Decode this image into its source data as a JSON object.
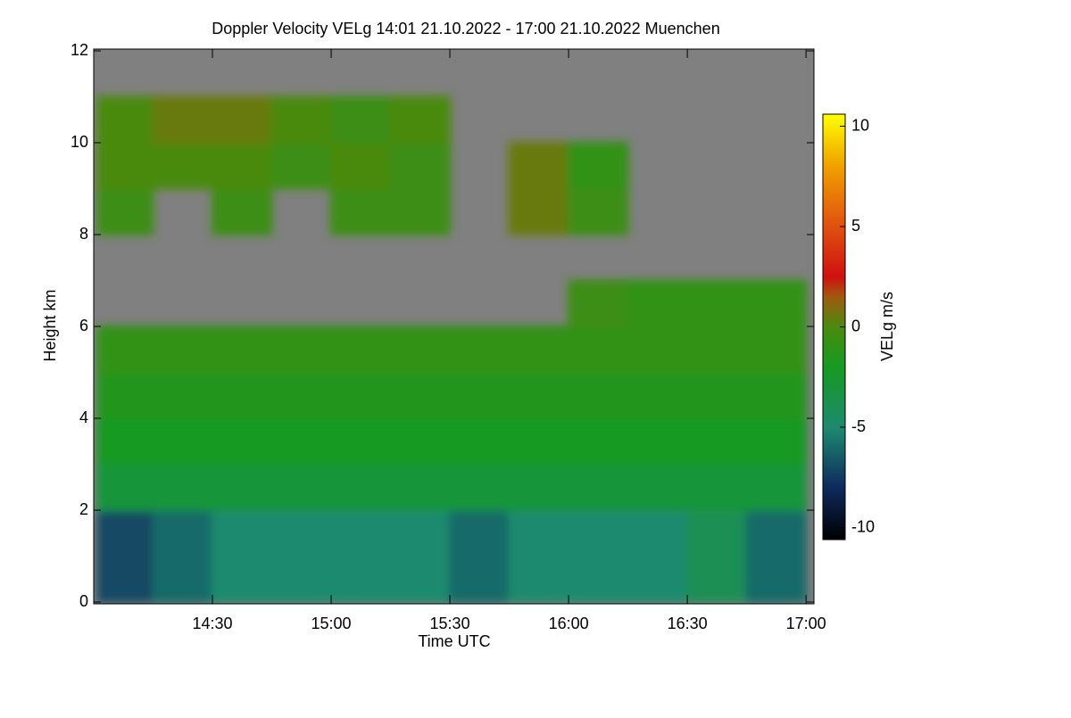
{
  "chart_data": {
    "type": "heatmap",
    "title": "Doppler Velocity VELg   14:01 21.10.2022 - 17:00 21.10.2022 Muenchen",
    "x_label": "Time UTC",
    "y_label": "Height km",
    "colorbar_label": "VELg m/s",
    "x_bins": [
      "14:01",
      "14:15",
      "14:30",
      "14:45",
      "15:00",
      "15:15",
      "15:30",
      "15:45",
      "16:00",
      "16:15",
      "16:30",
      "16:45",
      "17:00"
    ],
    "y_bins": [
      0,
      1,
      2,
      3,
      4,
      5,
      6,
      7,
      8,
      9,
      10,
      11,
      12
    ],
    "z": [
      [
        -7,
        -6,
        -5,
        -5,
        -5,
        -5,
        -6,
        -5,
        -5,
        -5,
        -4,
        -6
      ],
      [
        -7,
        -6,
        -5,
        -5,
        -5,
        -5,
        -6,
        -5,
        -5,
        -5,
        -4,
        -6
      ],
      [
        -3,
        -3,
        -3,
        -3,
        -3,
        -3,
        -3,
        -3,
        -3,
        -3,
        -3,
        -3
      ],
      [
        -2,
        -2,
        -2,
        -2,
        -2,
        -2,
        -2,
        -2,
        -2,
        -2,
        -2,
        -2
      ],
      [
        -1.5,
        -1.5,
        -1.5,
        -1.5,
        -1.5,
        -1.5,
        -1.5,
        -1.5,
        -1.5,
        -1.5,
        -1.5,
        -1.5
      ],
      [
        -1,
        -1,
        -1,
        -1,
        -1,
        -1,
        -1,
        -1,
        -1,
        -1,
        -1,
        -1
      ],
      [
        null,
        null,
        null,
        null,
        null,
        null,
        null,
        null,
        -0.5,
        -1,
        -1,
        -1
      ],
      [
        null,
        null,
        null,
        null,
        null,
        null,
        null,
        null,
        null,
        null,
        null,
        null
      ],
      [
        -0.5,
        null,
        -0.5,
        null,
        -0.5,
        -0.5,
        null,
        0.5,
        -0.5,
        null,
        null,
        null
      ],
      [
        0,
        0,
        0,
        -0.5,
        0,
        -0.5,
        null,
        0.5,
        -1,
        null,
        null,
        null
      ],
      [
        0,
        0.5,
        0.5,
        0,
        -0.5,
        0,
        null,
        null,
        null,
        null,
        null,
        null
      ],
      [
        null,
        null,
        null,
        null,
        null,
        null,
        null,
        null,
        null,
        null,
        null,
        null
      ]
    ],
    "no_data_color": "#808080",
    "xlim": [
      "14:00",
      "17:02"
    ],
    "xticks": [
      "14:30",
      "15:00",
      "15:30",
      "16:00",
      "16:30",
      "17:00"
    ],
    "ylim": [
      0,
      12
    ],
    "yticks": [
      0,
      2,
      4,
      6,
      8,
      10,
      12
    ],
    "clim": [
      -10.6,
      10.6
    ],
    "cticks": [
      -10,
      -5,
      0,
      5,
      10
    ],
    "colorscale": [
      [
        -10.6,
        "#000000"
      ],
      [
        -8,
        "#0e2a5e"
      ],
      [
        -5,
        "#1e8a6e"
      ],
      [
        -2,
        "#169a22"
      ],
      [
        0,
        "#4a8a10"
      ],
      [
        1.5,
        "#a05a10"
      ],
      [
        2.5,
        "#d01010"
      ],
      [
        5,
        "#e05010"
      ],
      [
        8,
        "#f0a000"
      ],
      [
        10.6,
        "#ffff00"
      ]
    ]
  }
}
